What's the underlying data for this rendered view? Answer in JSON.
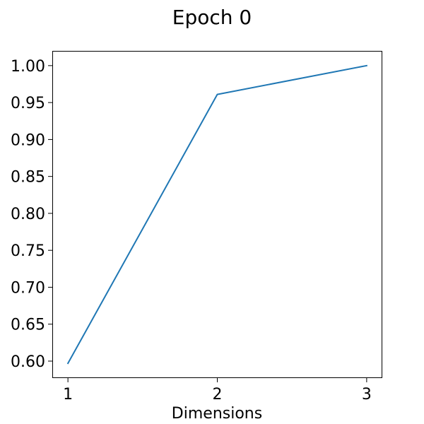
{
  "chart_data": {
    "type": "line",
    "title": "Epoch 0",
    "xlabel": "Dimensions",
    "ylabel": "",
    "x": [
      1,
      2,
      3
    ],
    "series": [
      {
        "values": [
          0.597,
          0.961,
          1.0
        ],
        "color": "#1f77b4"
      }
    ],
    "xlim": [
      0.9,
      3.1
    ],
    "ylim": [
      0.578,
      1.019
    ],
    "xticks": [
      1,
      2,
      3
    ],
    "xtick_labels": [
      "1",
      "2",
      "3"
    ],
    "yticks": [
      0.6,
      0.65,
      0.7,
      0.75,
      0.8,
      0.85,
      0.9,
      0.95,
      1.0
    ],
    "ytick_labels": [
      "0.60",
      "0.65",
      "0.70",
      "0.75",
      "0.80",
      "0.85",
      "0.90",
      "0.95",
      "1.00"
    ],
    "grid": false,
    "legend": "none"
  }
}
